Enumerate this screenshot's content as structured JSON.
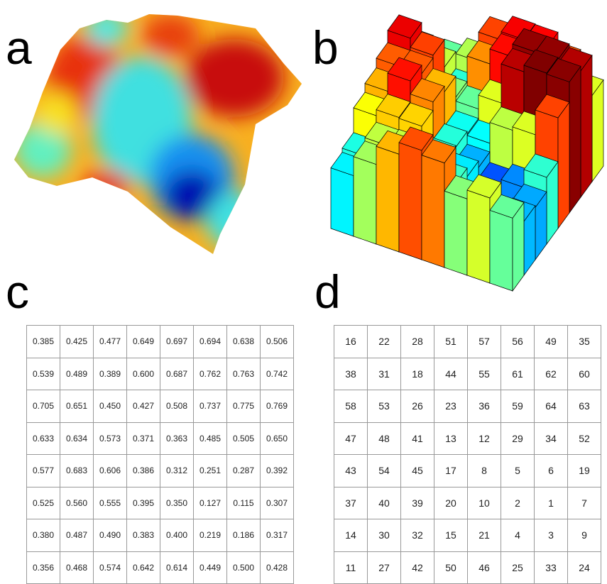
{
  "labels": {
    "a": "a",
    "b": "b",
    "c": "c",
    "d": "d"
  },
  "table_c": {
    "rows": [
      [
        "0.385",
        "0.425",
        "0.477",
        "0.649",
        "0.697",
        "0.694",
        "0.638",
        "0.506"
      ],
      [
        "0.539",
        "0.489",
        "0.389",
        "0.600",
        "0.687",
        "0.762",
        "0.763",
        "0.742"
      ],
      [
        "0.705",
        "0.651",
        "0.450",
        "0.427",
        "0.508",
        "0.737",
        "0.775",
        "0.769"
      ],
      [
        "0.633",
        "0.634",
        "0.573",
        "0.371",
        "0.363",
        "0.485",
        "0.505",
        "0.650"
      ],
      [
        "0.577",
        "0.683",
        "0.606",
        "0.386",
        "0.312",
        "0.251",
        "0.287",
        "0.392"
      ],
      [
        "0.525",
        "0.560",
        "0.555",
        "0.395",
        "0.350",
        "0.127",
        "0.115",
        "0.307"
      ],
      [
        "0.380",
        "0.487",
        "0.490",
        "0.383",
        "0.400",
        "0.219",
        "0.186",
        "0.317"
      ],
      [
        "0.356",
        "0.468",
        "0.574",
        "0.642",
        "0.614",
        "0.449",
        "0.500",
        "0.428"
      ]
    ]
  },
  "table_d": {
    "rows": [
      [
        16,
        22,
        28,
        51,
        57,
        56,
        49,
        35
      ],
      [
        38,
        31,
        18,
        44,
        55,
        61,
        62,
        60
      ],
      [
        58,
        53,
        26,
        23,
        36,
        59,
        64,
        63
      ],
      [
        47,
        48,
        41,
        13,
        12,
        29,
        34,
        52
      ],
      [
        43,
        54,
        45,
        17,
        8,
        5,
        6,
        19
      ],
      [
        37,
        40,
        39,
        20,
        10,
        2,
        1,
        7
      ],
      [
        14,
        30,
        32,
        15,
        21,
        4,
        3,
        9
      ],
      [
        11,
        27,
        42,
        50,
        46,
        25,
        33,
        24
      ]
    ]
  }
}
